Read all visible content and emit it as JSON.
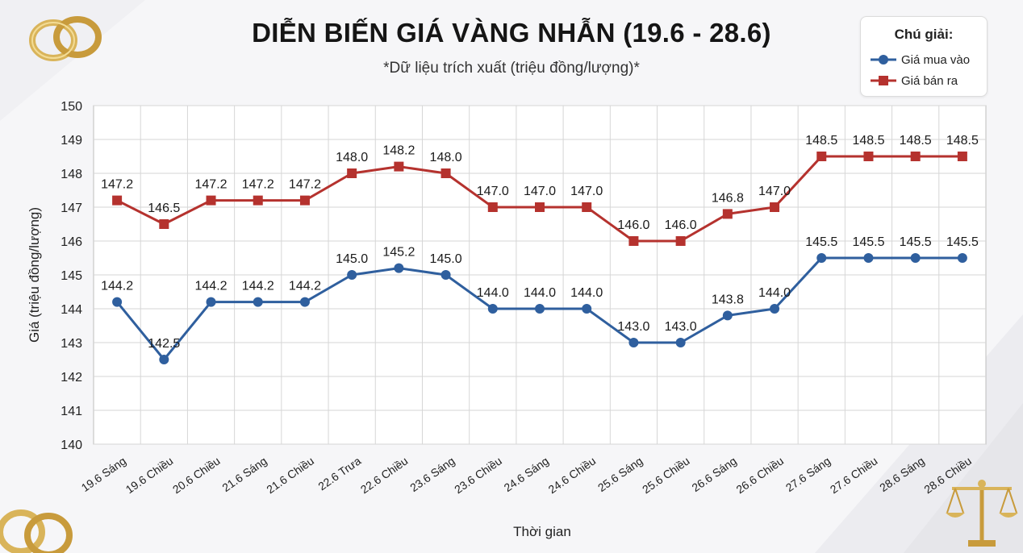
{
  "chart_data": {
    "type": "line",
    "title": "DIỄN BIẾN GIÁ VÀNG NHẪN (19.6 - 28.6)",
    "subtitle": "*Dữ liệu trích xuất (triệu đồng/lượng)*",
    "xlabel": "Thời gian",
    "ylabel": "Giá (triệu đồng/lượng)",
    "ylim": [
      140,
      150
    ],
    "yticks": [
      140,
      141,
      142,
      143,
      144,
      145,
      146,
      147,
      148,
      149,
      150
    ],
    "grid": true,
    "legend_position": "top-right",
    "legend_title": "Chú giải:",
    "categories": [
      "19.6 Sáng",
      "19.6 Chiều",
      "20.6 Chiều",
      "21.6 Sáng",
      "21.6 Chiều",
      "22.6 Trưa",
      "22.6 Chiều",
      "23.6 Sáng",
      "23.6 Chiều",
      "24.6 Sáng",
      "24.6 Chiều",
      "25.6 Sáng",
      "25.6 Chiều",
      "26.6 Sáng",
      "26.6 Chiều",
      "27.6 Sáng",
      "27.6 Chiều",
      "28.6 Sáng",
      "28.6 Chiều"
    ],
    "series": [
      {
        "name": "Giá mua vào",
        "color": "#2f5f9e",
        "marker": "circle",
        "values": [
          144.2,
          142.5,
          144.2,
          144.2,
          144.2,
          145.0,
          145.2,
          145.0,
          144.0,
          144.0,
          144.0,
          143.0,
          143.0,
          143.8,
          144.0,
          145.5,
          145.5,
          145.5,
          145.5
        ]
      },
      {
        "name": "Giá bán ra",
        "color": "#b5322e",
        "marker": "square",
        "values": [
          147.2,
          146.5,
          147.2,
          147.2,
          147.2,
          148.0,
          148.2,
          148.0,
          147.0,
          147.0,
          147.0,
          146.0,
          146.0,
          146.8,
          147.0,
          148.5,
          148.5,
          148.5,
          148.5
        ]
      }
    ]
  },
  "decor": {
    "top_left": "wedding-rings-icon",
    "bottom_left": "wedding-rings-icon",
    "bottom_right": "balance-scale-icon",
    "accent_gold": "#d9b45a"
  }
}
